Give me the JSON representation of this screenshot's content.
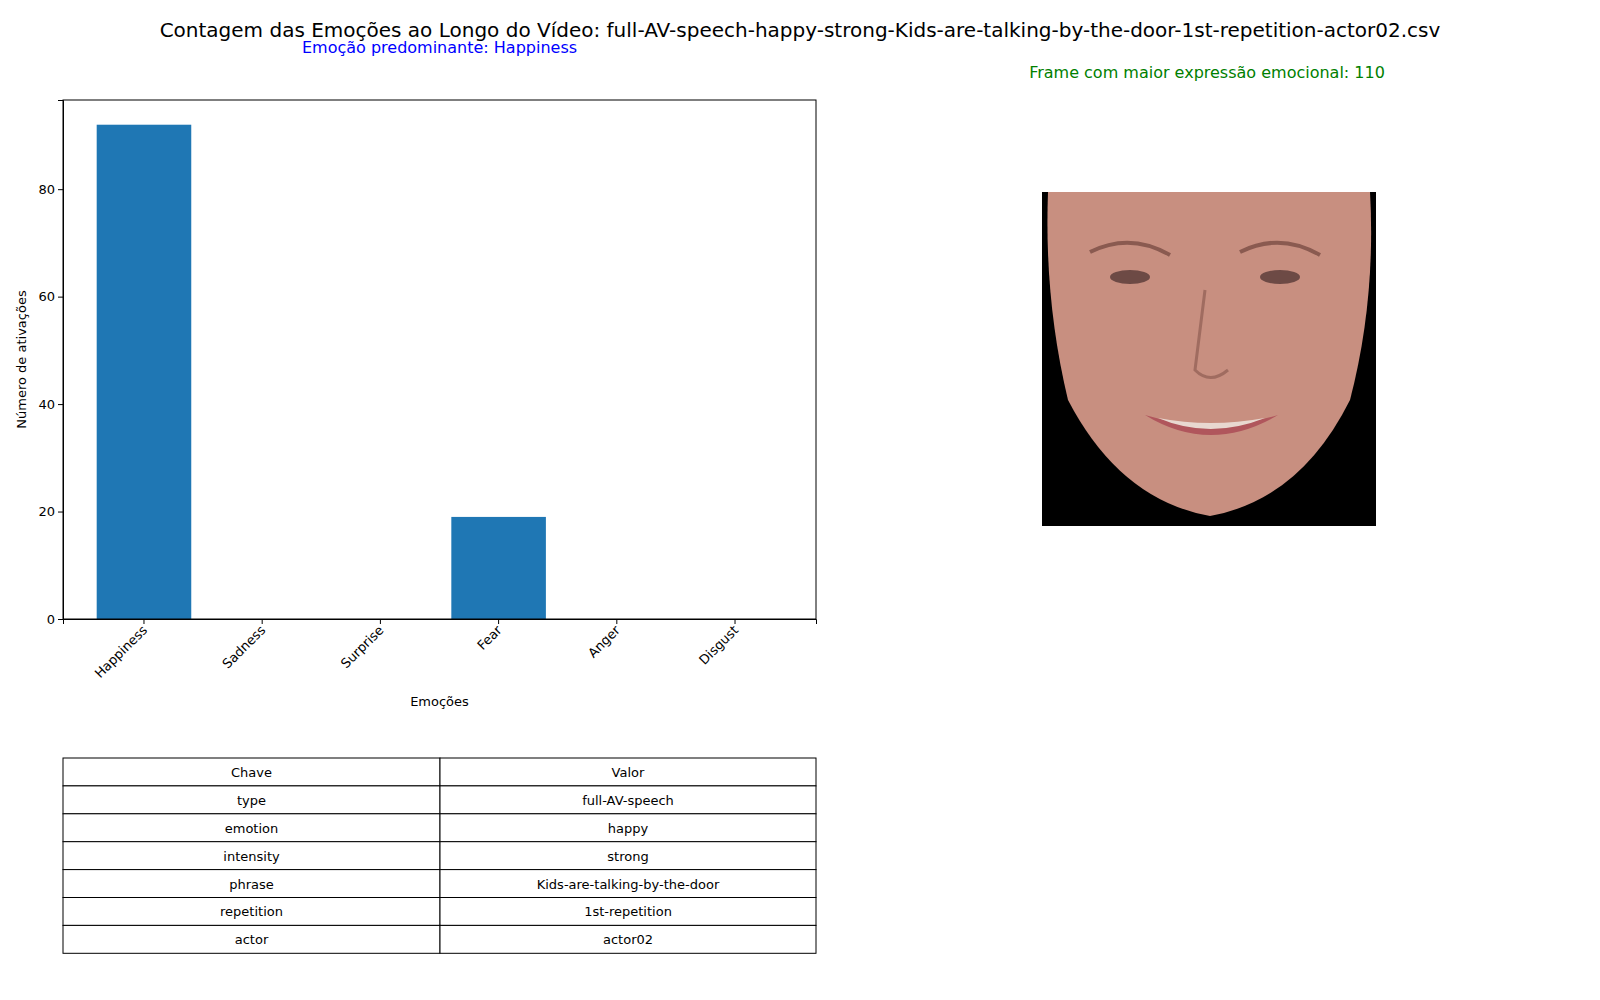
{
  "chart_data": {
    "type": "bar",
    "title": "Contagem das Emoções ao Longo do Vídeo: full-AV-speech-happy-strong-Kids-are-talking-by-the-door-1st-repetition-actor02.csv",
    "subtitle": "Emoção predominante: Happiness",
    "annotation": "Frame com maior expressão emocional: 110",
    "x_label": "Emoções",
    "y_label": "Número de ativações",
    "categories": [
      "Happiness",
      "Sadness",
      "Surprise",
      "Fear",
      "Anger",
      "Disgust"
    ],
    "values": [
      92,
      0,
      0,
      19,
      0,
      0
    ],
    "color": "#1f77b4",
    "ylim": [
      0,
      96.6
    ],
    "yticks": [
      0,
      20,
      40,
      60,
      80
    ],
    "grid": false,
    "table": {
      "header": [
        "Chave",
        "Valor"
      ],
      "rows": [
        [
          "type",
          "full-AV-speech"
        ],
        [
          "emotion",
          "happy"
        ],
        [
          "intensity",
          "strong"
        ],
        [
          "phrase",
          "Kids-are-talking-by-the-door"
        ],
        [
          "repetition",
          "1st-repetition"
        ],
        [
          "actor",
          "actor02"
        ]
      ]
    }
  }
}
